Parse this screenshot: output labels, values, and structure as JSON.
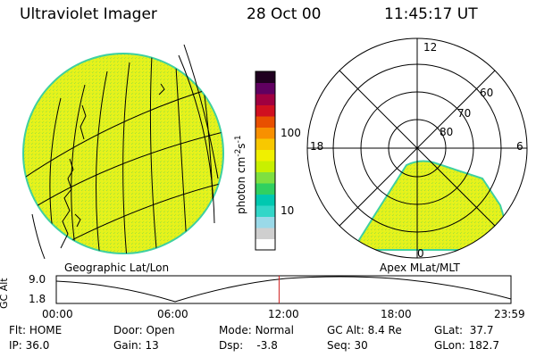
{
  "header": {
    "title": "Ultraviolet Imager",
    "date": "28 Oct 00",
    "time": "11:45:17 UT"
  },
  "colorbar": {
    "unit_base": "photon cm",
    "unit_exp1": "-2",
    "unit_mid": "s",
    "unit_exp2": "-1",
    "tick_labels": [
      "100",
      "10"
    ],
    "colors": [
      "#ffffff",
      "#cfcfcf",
      "#9ad9e8",
      "#33d6c8",
      "#00c8b0",
      "#30d060",
      "#7ee040",
      "#c8f000",
      "#f0f000",
      "#f8c800",
      "#f89000",
      "#e85000",
      "#d01020",
      "#a00040",
      "#600060",
      "#200020"
    ]
  },
  "left_panel": {
    "label": "Geographic Lat/Lon"
  },
  "right_panel": {
    "label": "Apex MLat/MLT",
    "mlt_labels": [
      "12",
      "18",
      "6",
      "0"
    ],
    "lat_labels": [
      "60",
      "70",
      "80"
    ]
  },
  "altitude_plot": {
    "ylabel": "GC Alt",
    "yticks": [
      "9.0",
      "1.8"
    ],
    "xticks": [
      "00:00",
      "06:00",
      "12:00",
      "18:00",
      "23:59"
    ],
    "marker_fraction": 0.49
  },
  "footer": {
    "row1": [
      {
        "label": "Flt:",
        "value": "HOME"
      },
      {
        "label": "Door:",
        "value": "Open"
      },
      {
        "label": "Mode:",
        "value": "Normal"
      },
      {
        "label": "GC Alt:",
        "value": "8.4 Re"
      },
      {
        "label": "GLat:",
        "value": "37.7"
      }
    ],
    "row2": [
      {
        "label": "IP:",
        "value": "36.0"
      },
      {
        "label": "Gain:",
        "value": "13"
      },
      {
        "label": "Dsp:",
        "value": "-3.8"
      },
      {
        "label": "Seq:",
        "value": "30"
      },
      {
        "label": "GLon:",
        "value": "182.7"
      }
    ]
  },
  "colors": {
    "image_fill": "#e4f21c",
    "image_edge": "#3fd0a0",
    "marker": "#d02020"
  }
}
